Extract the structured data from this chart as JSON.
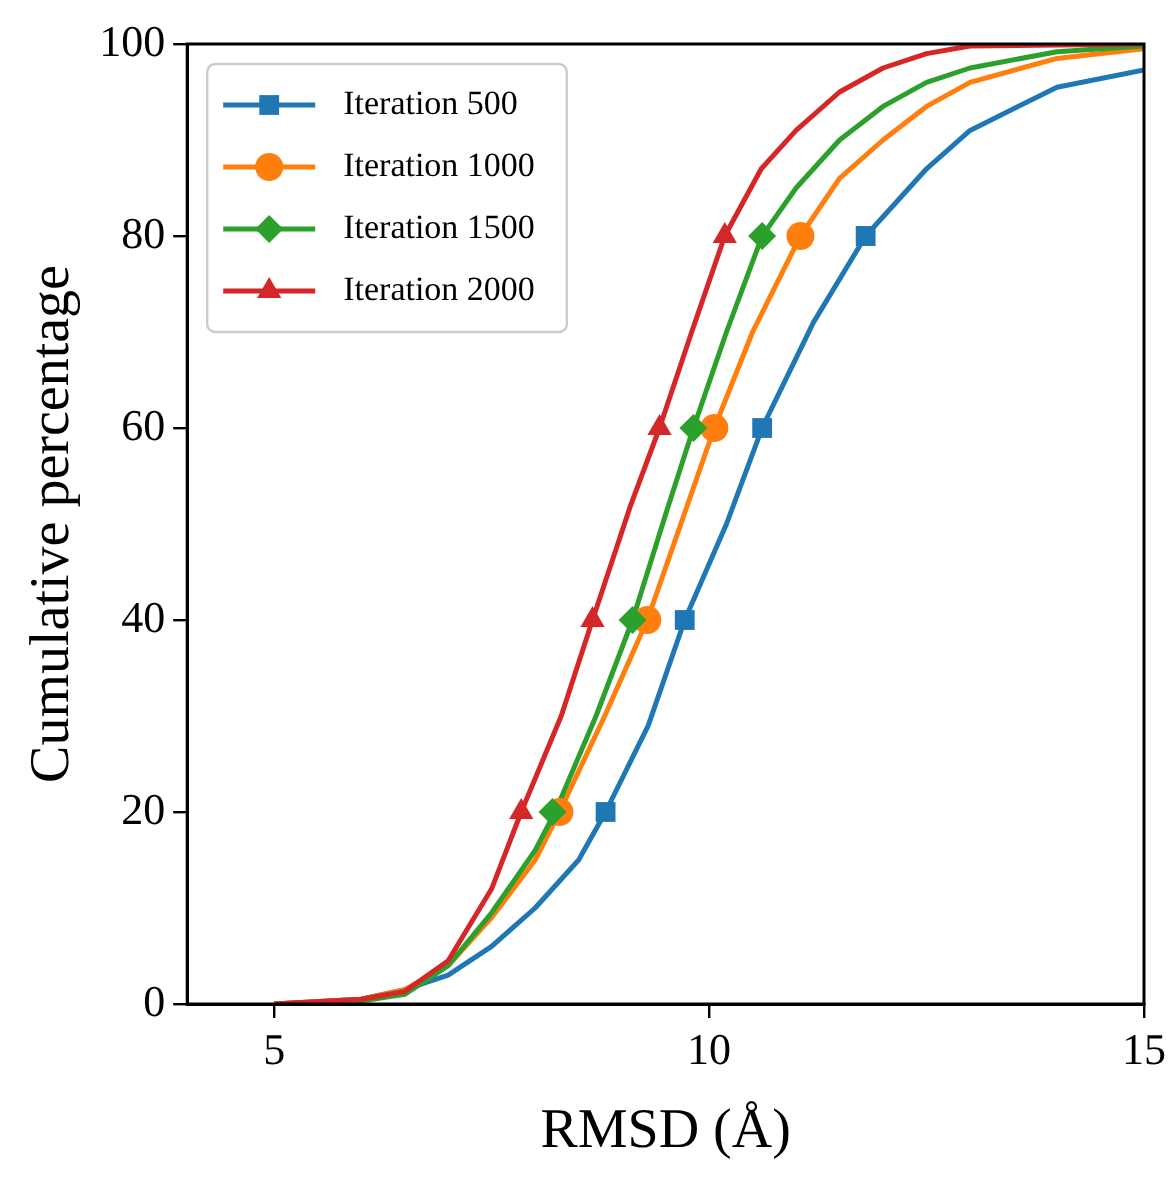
{
  "chart_data": {
    "type": "line",
    "xlabel": "RMSD (Å)",
    "ylabel": "Cumulative percentage",
    "xlim": [
      4,
      15
    ],
    "xticks": [
      5,
      10,
      15
    ],
    "ylim": [
      0,
      100
    ],
    "yticks": [
      0,
      20,
      40,
      60,
      80,
      100
    ],
    "grid": false,
    "legend": "top left",
    "series": [
      {
        "name": "Iteration 500",
        "color": "#1f77b4",
        "marker": "none",
        "line_style": "solid",
        "x": [
          5,
          6,
          6.5,
          7,
          7.5,
          8,
          8.5,
          8.81,
          9.3,
          9.72,
          10.2,
          10.61,
          11.2,
          11.8,
          12.5,
          13,
          14,
          15
        ],
        "values": [
          0,
          0.5,
          1.5,
          3,
          6,
          10,
          15,
          20,
          29,
          40,
          50,
          60,
          71,
          80,
          87,
          91,
          95.5,
          97.3
        ]
      },
      {
        "name": "Iteration 1000",
        "color": "#ff7f0e",
        "marker": "none",
        "line_style": "solid",
        "x": [
          5,
          6,
          6.5,
          7,
          7.5,
          8,
          8.28,
          8.8,
          9.29,
          10.06,
          10.5,
          11.05,
          11.5,
          12,
          12.5,
          13,
          14,
          15
        ],
        "values": [
          0,
          0.5,
          1.5,
          4,
          9,
          15,
          20,
          30,
          40,
          60,
          70,
          80,
          86,
          90,
          93.5,
          96,
          98.5,
          99.5
        ]
      },
      {
        "name": "Iteration 1500",
        "color": "#2ca02c",
        "marker": "none",
        "line_style": "solid",
        "x": [
          5,
          6,
          6.5,
          7,
          7.5,
          8,
          8.23,
          8.7,
          9.12,
          9.5,
          9.82,
          10.2,
          10.61,
          11,
          11.5,
          12,
          12.5,
          13,
          14,
          15
        ],
        "values": [
          0,
          0.3,
          1,
          4,
          9.5,
          16,
          20,
          30,
          40,
          51,
          60,
          70,
          80,
          85,
          90,
          93.5,
          96,
          97.5,
          99.2,
          99.8
        ]
      },
      {
        "name": "Iteration 2000",
        "color": "#d62728",
        "marker": "none",
        "line_style": "solid",
        "x": [
          5,
          6,
          6.5,
          7,
          7.5,
          7.84,
          8.3,
          8.66,
          9.1,
          9.43,
          9.8,
          10.18,
          10.6,
          11,
          11.5,
          12,
          12.5,
          13,
          15
        ],
        "values": [
          0,
          0.5,
          1.3,
          4.5,
          12,
          20,
          30,
          40,
          52,
          60,
          70,
          80,
          87,
          91,
          95,
          97.5,
          99,
          99.8,
          100
        ]
      },
      {
        "color": "#1f77b4",
        "type": "scatter",
        "marker": "square",
        "x": [
          8.81,
          9.72,
          10.61,
          11.8
        ],
        "values": [
          20,
          40,
          60,
          80
        ]
      },
      {
        "color": "#ff7f0e",
        "type": "scatter",
        "marker": "circle",
        "x": [
          8.28,
          9.29,
          10.06,
          11.05
        ],
        "values": [
          20,
          40,
          60,
          80
        ]
      },
      {
        "color": "#2ca02c",
        "type": "scatter",
        "marker": "diamond",
        "x": [
          8.2,
          9.12,
          9.82,
          10.61
        ],
        "values": [
          20,
          40,
          60,
          80
        ]
      },
      {
        "color": "#d62728",
        "type": "scatter",
        "marker": "triangle",
        "x": [
          7.84,
          8.66,
          9.43,
          10.18
        ],
        "values": [
          20,
          40,
          60,
          80
        ]
      }
    ]
  }
}
